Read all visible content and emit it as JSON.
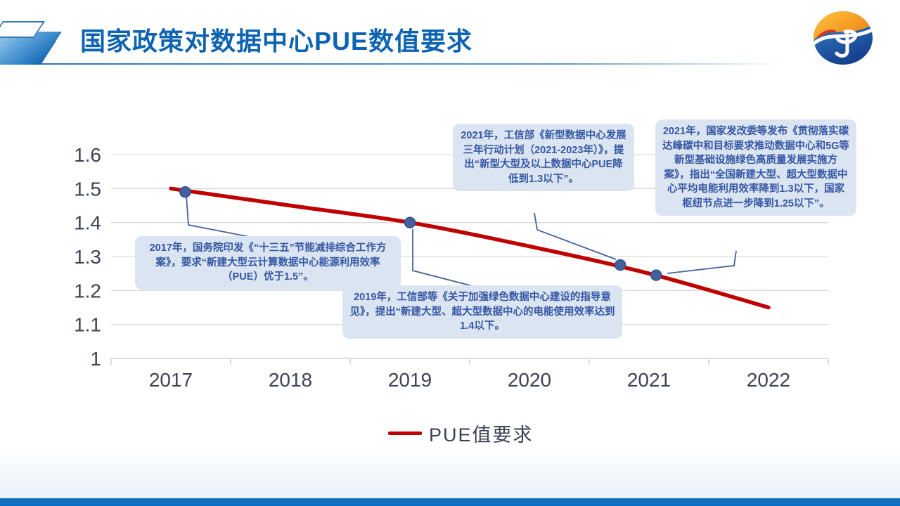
{
  "slide": {
    "title": "国家政策对数据中心PUE数值要求",
    "accent_color": "#0d6fbe",
    "callout_bg_color": "#dbe5f1",
    "callout_text_color": "#3456a4"
  },
  "chart_data": {
    "type": "line",
    "title": "",
    "xlabel": "",
    "ylabel": "",
    "x_tick_labels": [
      "2017",
      "2018",
      "2019",
      "2020",
      "2021",
      "2022"
    ],
    "y_ticks": [
      1,
      1.1,
      1.2,
      1.3,
      1.4,
      1.5,
      1.6
    ],
    "y_tick_labels": [
      "1",
      "1.1",
      "1.2",
      "1.3",
      "1.4",
      "1.5",
      "1.6"
    ],
    "ylim": [
      1.0,
      1.6
    ],
    "grid": "horizontal-only",
    "legend_position": "bottom-center",
    "axis_label_color": "#3d4254",
    "grid_color": "#d9d9d9",
    "axis_line_color": "#c3c8d0",
    "series": [
      {
        "name": "PUE值要求",
        "color": "#c00000",
        "x": [
          2017,
          2018,
          2019,
          2020,
          2021,
          2022
        ],
        "values": [
          1.5,
          1.45,
          1.4,
          1.33,
          1.25,
          1.15
        ]
      }
    ],
    "policy_markers": [
      {
        "x": 2017.12,
        "y": 1.49
      },
      {
        "x": 2019.0,
        "y": 1.4
      },
      {
        "x": 2020.76,
        "y": 1.275
      },
      {
        "x": 2021.06,
        "y": 1.245
      }
    ],
    "marker_color": "#44619d",
    "marker_edge_color": "#31508d",
    "connector_color": "#44619d"
  },
  "legend": {
    "label": "PUE值要求",
    "swatch_color": "#c00000"
  },
  "callouts": [
    {
      "id": "policy-2017",
      "text": "2017年，国务院印发《“十三五”节能减排综合工作方案》，要求“新建大型云计算数据中心能源利用效率（PUE）优于1.5”。"
    },
    {
      "id": "policy-2019",
      "text": "2019年，工信部等《关于加强绿色数据中心建设的指导意见》，提出“新建大型、超大型数据中心的电能使用效率达到1.4以下。"
    },
    {
      "id": "policy-2021-miit",
      "text": "2021年，工信部《新型数据中心发展三年行动计划（2021-2023年）》，提出“新型大型及以上数据中心PUE降低到1.3以下”。"
    },
    {
      "id": "policy-2021-ndrc",
      "text": "2021年，国家发改委等发布《贯彻落实碳达峰碳中和目标要求推动数据中心和5G等新型基础设施绿色高质量发展实施方案》，指出“全国新建大型、超大型数据中心平均电能利用效率降到1.3以下，国家枢纽节点进一步降到1.25以下”。"
    }
  ]
}
